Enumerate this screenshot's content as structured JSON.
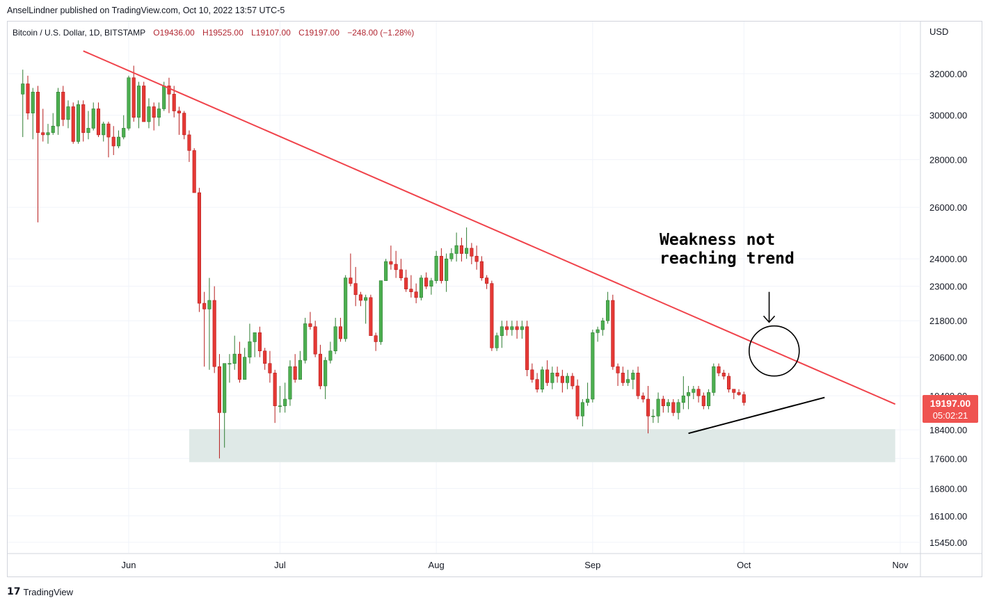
{
  "header": {
    "published_by": "AnselLindner published on TradingView.com, Oct 10, 2022 13:57 UTC-5"
  },
  "footer": {
    "logo_text": "TradingView",
    "logo_icon": "tradingview-logo-icon"
  },
  "colors": {
    "up": "#26a69a",
    "up_fill": "#4caf50",
    "down": "#ef5350",
    "down_fill": "#e53935",
    "trendline": "#f0434b",
    "support_zone": "#dfe9e7",
    "price_label_bg": "#ef5350"
  },
  "chart_data": {
    "type": "candlestick",
    "symbol_line": {
      "name": "Bitcoin / U.S. Dollar, 1D, BITSTAMP",
      "open": "O19436.00",
      "high": "H19525.00",
      "low": "L19107.00",
      "close": "C19197.00",
      "change": "−248.00 (−1.28%)"
    },
    "y_axis": {
      "unit_label": "USD",
      "scale": "log",
      "ticks": [
        32000,
        30000,
        28000,
        26000,
        24000,
        23000,
        21800,
        20600,
        19400,
        18400,
        17600,
        16800,
        16100,
        15450
      ],
      "tick_labels": [
        "32000.00",
        "30000.00",
        "28000.00",
        "26000.00",
        "24000.00",
        "23000.00",
        "21800.00",
        "20600.00",
        "19400.00",
        "18400.00",
        "17600.00",
        "16800.00",
        "16100.00",
        "15450.00"
      ],
      "range": [
        15200,
        34700
      ]
    },
    "x_axis": {
      "range": [
        "2022-05-08",
        "2022-11-05"
      ],
      "ticks": [
        {
          "date": "2022-06-01",
          "label": "Jun"
        },
        {
          "date": "2022-07-01",
          "label": "Jul"
        },
        {
          "date": "2022-08-01",
          "label": "Aug"
        },
        {
          "date": "2022-09-01",
          "label": "Sep"
        },
        {
          "date": "2022-10-01",
          "label": "Oct"
        },
        {
          "date": "2022-11-01",
          "label": "Nov"
        }
      ]
    },
    "start_date": "2022-05-11",
    "candles": [
      {
        "o": 31000,
        "h": 32200,
        "l": 29000,
        "c": 31500
      },
      {
        "o": 31500,
        "h": 31900,
        "l": 29800,
        "c": 30100
      },
      {
        "o": 30100,
        "h": 31300,
        "l": 28900,
        "c": 31100
      },
      {
        "o": 31100,
        "h": 31400,
        "l": 25400,
        "c": 29200
      },
      {
        "o": 29200,
        "h": 30300,
        "l": 28800,
        "c": 29100
      },
      {
        "o": 29100,
        "h": 29600,
        "l": 28700,
        "c": 29200
      },
      {
        "o": 29200,
        "h": 30100,
        "l": 29100,
        "c": 29500
      },
      {
        "o": 29500,
        "h": 31300,
        "l": 29100,
        "c": 31100
      },
      {
        "o": 31100,
        "h": 31400,
        "l": 29500,
        "c": 29800
      },
      {
        "o": 29800,
        "h": 30700,
        "l": 29400,
        "c": 30400
      },
      {
        "o": 30400,
        "h": 30600,
        "l": 28700,
        "c": 28800
      },
      {
        "o": 28800,
        "h": 30700,
        "l": 28700,
        "c": 30500
      },
      {
        "o": 30500,
        "h": 30700,
        "l": 28800,
        "c": 29200
      },
      {
        "o": 29200,
        "h": 30200,
        "l": 28900,
        "c": 29400
      },
      {
        "o": 29400,
        "h": 30600,
        "l": 29300,
        "c": 30300
      },
      {
        "o": 30300,
        "h": 30600,
        "l": 29000,
        "c": 29100
      },
      {
        "o": 29100,
        "h": 29700,
        "l": 28800,
        "c": 29600
      },
      {
        "o": 29600,
        "h": 29700,
        "l": 28100,
        "c": 29000
      },
      {
        "o": 29000,
        "h": 29500,
        "l": 28200,
        "c": 28600
      },
      {
        "o": 28600,
        "h": 29300,
        "l": 28500,
        "c": 29000
      },
      {
        "o": 29000,
        "h": 30000,
        "l": 28900,
        "c": 29400
      },
      {
        "o": 29400,
        "h": 31900,
        "l": 29300,
        "c": 31800
      },
      {
        "o": 31800,
        "h": 32400,
        "l": 29700,
        "c": 29900
      },
      {
        "o": 29900,
        "h": 31600,
        "l": 29400,
        "c": 31400
      },
      {
        "o": 31400,
        "h": 31600,
        "l": 29700,
        "c": 29700
      },
      {
        "o": 29700,
        "h": 30800,
        "l": 29400,
        "c": 30400
      },
      {
        "o": 30400,
        "h": 30600,
        "l": 29300,
        "c": 29900
      },
      {
        "o": 29900,
        "h": 30600,
        "l": 29500,
        "c": 30300
      },
      {
        "o": 30300,
        "h": 31600,
        "l": 30200,
        "c": 31400
      },
      {
        "o": 31400,
        "h": 31800,
        "l": 30100,
        "c": 31000
      },
      {
        "o": 31000,
        "h": 31400,
        "l": 29900,
        "c": 30200
      },
      {
        "o": 30200,
        "h": 30400,
        "l": 29100,
        "c": 30100
      },
      {
        "o": 30100,
        "h": 30200,
        "l": 28900,
        "c": 29100
      },
      {
        "o": 29100,
        "h": 29300,
        "l": 27900,
        "c": 28400
      },
      {
        "o": 28400,
        "h": 28500,
        "l": 26600,
        "c": 26600
      },
      {
        "o": 26600,
        "h": 26800,
        "l": 22100,
        "c": 22400
      },
      {
        "o": 22400,
        "h": 22800,
        "l": 20300,
        "c": 22200
      },
      {
        "o": 22200,
        "h": 23300,
        "l": 20200,
        "c": 22500
      },
      {
        "o": 22500,
        "h": 23000,
        "l": 20100,
        "c": 20300
      },
      {
        "o": 20300,
        "h": 20700,
        "l": 17600,
        "c": 18900
      },
      {
        "o": 18900,
        "h": 20300,
        "l": 17900,
        "c": 20400
      },
      {
        "o": 20400,
        "h": 20700,
        "l": 19800,
        "c": 20400
      },
      {
        "o": 20400,
        "h": 21300,
        "l": 20200,
        "c": 20700
      },
      {
        "o": 20700,
        "h": 21100,
        "l": 19800,
        "c": 19900
      },
      {
        "o": 19900,
        "h": 20900,
        "l": 19900,
        "c": 20600
      },
      {
        "o": 20600,
        "h": 21700,
        "l": 20400,
        "c": 21100
      },
      {
        "o": 21100,
        "h": 21400,
        "l": 20600,
        "c": 21400
      },
      {
        "o": 21400,
        "h": 21600,
        "l": 20600,
        "c": 20800
      },
      {
        "o": 20800,
        "h": 20900,
        "l": 20200,
        "c": 20400
      },
      {
        "o": 20400,
        "h": 20800,
        "l": 19800,
        "c": 20100
      },
      {
        "o": 20100,
        "h": 20200,
        "l": 18600,
        "c": 19100
      },
      {
        "o": 19100,
        "h": 19700,
        "l": 18900,
        "c": 19100
      },
      {
        "o": 19100,
        "h": 19800,
        "l": 18900,
        "c": 19300
      },
      {
        "o": 19300,
        "h": 20500,
        "l": 19100,
        "c": 20300
      },
      {
        "o": 20300,
        "h": 20700,
        "l": 19800,
        "c": 19900
      },
      {
        "o": 19900,
        "h": 20800,
        "l": 19900,
        "c": 20500
      },
      {
        "o": 20500,
        "h": 21900,
        "l": 20400,
        "c": 21700
      },
      {
        "o": 21700,
        "h": 22100,
        "l": 21500,
        "c": 21600
      },
      {
        "o": 21600,
        "h": 21800,
        "l": 20600,
        "c": 20700
      },
      {
        "o": 20700,
        "h": 21000,
        "l": 19600,
        "c": 19700
      },
      {
        "o": 19700,
        "h": 20600,
        "l": 19300,
        "c": 20500
      },
      {
        "o": 20500,
        "h": 21100,
        "l": 20400,
        "c": 20800
      },
      {
        "o": 20800,
        "h": 21900,
        "l": 20700,
        "c": 21600
      },
      {
        "o": 21600,
        "h": 21900,
        "l": 21100,
        "c": 21200
      },
      {
        "o": 21200,
        "h": 23400,
        "l": 21100,
        "c": 23300
      },
      {
        "o": 23300,
        "h": 24200,
        "l": 23000,
        "c": 23100
      },
      {
        "o": 23100,
        "h": 23700,
        "l": 22300,
        "c": 22700
      },
      {
        "o": 22700,
        "h": 22800,
        "l": 22300,
        "c": 22500
      },
      {
        "o": 22500,
        "h": 22700,
        "l": 21700,
        "c": 22600
      },
      {
        "o": 22600,
        "h": 22700,
        "l": 21300,
        "c": 21300
      },
      {
        "o": 21300,
        "h": 21400,
        "l": 20800,
        "c": 21100
      },
      {
        "o": 21100,
        "h": 23200,
        "l": 21000,
        "c": 23200
      },
      {
        "o": 23200,
        "h": 24000,
        "l": 23200,
        "c": 23900
      },
      {
        "o": 23900,
        "h": 24500,
        "l": 23600,
        "c": 23800
      },
      {
        "o": 23800,
        "h": 24300,
        "l": 23300,
        "c": 23600
      },
      {
        "o": 23600,
        "h": 24000,
        "l": 23200,
        "c": 23300
      },
      {
        "o": 23300,
        "h": 23600,
        "l": 22800,
        "c": 22900
      },
      {
        "o": 22900,
        "h": 23400,
        "l": 22600,
        "c": 22800
      },
      {
        "o": 22800,
        "h": 23100,
        "l": 22400,
        "c": 22600
      },
      {
        "o": 22600,
        "h": 23400,
        "l": 22500,
        "c": 23300
      },
      {
        "o": 23300,
        "h": 23500,
        "l": 22900,
        "c": 23000
      },
      {
        "o": 23000,
        "h": 23300,
        "l": 22700,
        "c": 23200
      },
      {
        "o": 23200,
        "h": 24300,
        "l": 23100,
        "c": 24100
      },
      {
        "o": 24100,
        "h": 24400,
        "l": 23100,
        "c": 23200
      },
      {
        "o": 23200,
        "h": 24200,
        "l": 22800,
        "c": 24000
      },
      {
        "o": 24000,
        "h": 24400,
        "l": 23900,
        "c": 24200
      },
      {
        "o": 24200,
        "h": 25000,
        "l": 23900,
        "c": 24500
      },
      {
        "o": 24500,
        "h": 24800,
        "l": 23900,
        "c": 24200
      },
      {
        "o": 24200,
        "h": 25200,
        "l": 24000,
        "c": 24400
      },
      {
        "o": 24400,
        "h": 24600,
        "l": 23800,
        "c": 24100
      },
      {
        "o": 24100,
        "h": 24500,
        "l": 23600,
        "c": 23900
      },
      {
        "o": 23900,
        "h": 24100,
        "l": 23200,
        "c": 23300
      },
      {
        "o": 23300,
        "h": 23400,
        "l": 22900,
        "c": 23100
      },
      {
        "o": 23100,
        "h": 23200,
        "l": 20800,
        "c": 20900
      },
      {
        "o": 20900,
        "h": 21400,
        "l": 20800,
        "c": 21300
      },
      {
        "o": 21300,
        "h": 21800,
        "l": 20900,
        "c": 21600
      },
      {
        "o": 21600,
        "h": 21800,
        "l": 21300,
        "c": 21500
      },
      {
        "o": 21500,
        "h": 21800,
        "l": 21300,
        "c": 21600
      },
      {
        "o": 21600,
        "h": 21800,
        "l": 21200,
        "c": 21500
      },
      {
        "o": 21500,
        "h": 21800,
        "l": 21200,
        "c": 21600
      },
      {
        "o": 21600,
        "h": 21800,
        "l": 20000,
        "c": 20200
      },
      {
        "o": 20200,
        "h": 20400,
        "l": 19800,
        "c": 19900
      },
      {
        "o": 19900,
        "h": 20100,
        "l": 19500,
        "c": 19600
      },
      {
        "o": 19600,
        "h": 20300,
        "l": 19500,
        "c": 20200
      },
      {
        "o": 20200,
        "h": 20500,
        "l": 19700,
        "c": 19800
      },
      {
        "o": 19800,
        "h": 20300,
        "l": 19600,
        "c": 20100
      },
      {
        "o": 20100,
        "h": 20300,
        "l": 19800,
        "c": 20000
      },
      {
        "o": 20000,
        "h": 20200,
        "l": 19500,
        "c": 19800
      },
      {
        "o": 19800,
        "h": 20100,
        "l": 19600,
        "c": 20000
      },
      {
        "o": 20000,
        "h": 20100,
        "l": 19600,
        "c": 19700
      },
      {
        "o": 19700,
        "h": 19900,
        "l": 18700,
        "c": 18800
      },
      {
        "o": 18800,
        "h": 19300,
        "l": 18500,
        "c": 19200
      },
      {
        "o": 19200,
        "h": 19800,
        "l": 19100,
        "c": 19300
      },
      {
        "o": 19300,
        "h": 21500,
        "l": 19200,
        "c": 21400
      },
      {
        "o": 21400,
        "h": 21600,
        "l": 21100,
        "c": 21500
      },
      {
        "o": 21500,
        "h": 21900,
        "l": 21300,
        "c": 21800
      },
      {
        "o": 21800,
        "h": 22800,
        "l": 21700,
        "c": 22500
      },
      {
        "o": 22500,
        "h": 22700,
        "l": 20200,
        "c": 20300
      },
      {
        "o": 20300,
        "h": 20400,
        "l": 19700,
        "c": 20100
      },
      {
        "o": 20100,
        "h": 20300,
        "l": 19700,
        "c": 19800
      },
      {
        "o": 19800,
        "h": 20200,
        "l": 19700,
        "c": 19900
      },
      {
        "o": 19900,
        "h": 20200,
        "l": 19600,
        "c": 20100
      },
      {
        "o": 20100,
        "h": 20300,
        "l": 19300,
        "c": 19400
      },
      {
        "o": 19400,
        "h": 19500,
        "l": 19200,
        "c": 19300
      },
      {
        "o": 19300,
        "h": 19700,
        "l": 18300,
        "c": 18800
      },
      {
        "o": 18800,
        "h": 19000,
        "l": 18600,
        "c": 18800
      },
      {
        "o": 18800,
        "h": 19500,
        "l": 18600,
        "c": 19300
      },
      {
        "o": 19300,
        "h": 19400,
        "l": 18900,
        "c": 19100
      },
      {
        "o": 19100,
        "h": 19300,
        "l": 18900,
        "c": 19200
      },
      {
        "o": 19200,
        "h": 19300,
        "l": 18800,
        "c": 18900
      },
      {
        "o": 18900,
        "h": 19300,
        "l": 18700,
        "c": 19200
      },
      {
        "o": 19200,
        "h": 20000,
        "l": 19000,
        "c": 19400
      },
      {
        "o": 19400,
        "h": 19700,
        "l": 19000,
        "c": 19500
      },
      {
        "o": 19500,
        "h": 19700,
        "l": 19300,
        "c": 19600
      },
      {
        "o": 19600,
        "h": 19700,
        "l": 19200,
        "c": 19400
      },
      {
        "o": 19400,
        "h": 19500,
        "l": 19000,
        "c": 19100
      },
      {
        "o": 19100,
        "h": 19600,
        "l": 19000,
        "c": 19500
      },
      {
        "o": 19500,
        "h": 20400,
        "l": 19400,
        "c": 20300
      },
      {
        "o": 20300,
        "h": 20400,
        "l": 20000,
        "c": 20100
      },
      {
        "o": 20100,
        "h": 20200,
        "l": 19900,
        "c": 20000
      },
      {
        "o": 20000,
        "h": 20100,
        "l": 19500,
        "c": 19600
      },
      {
        "o": 19600,
        "h": 19600,
        "l": 19300,
        "c": 19500
      },
      {
        "o": 19500,
        "h": 19600,
        "l": 19400,
        "c": 19436
      },
      {
        "o": 19436,
        "h": 19525,
        "l": 19107,
        "c": 19197
      }
    ],
    "last_price_label": "19197.00",
    "countdown_label": "05:02:21",
    "annotations": {
      "text_line1": "Weakness not",
      "text_line2": "reaching trend",
      "resistance_line": {
        "start": {
          "date": "2022-05-23",
          "price": 33150
        },
        "end": {
          "date": "2022-10-31",
          "price": 19150
        }
      },
      "support_line": {
        "start": {
          "date": "2022-09-20",
          "price": 18300
        },
        "end": {
          "date": "2022-10-17",
          "price": 19350
        }
      },
      "support_zone": {
        "from_date": "2022-06-13",
        "to_date": "2022-10-31",
        "low": 17500,
        "high": 18420
      },
      "circle_center": {
        "date": "2022-10-07",
        "price": 20800
      },
      "arrow": {
        "date": "2022-10-06",
        "from_price": 22800,
        "to_price": 21750
      }
    }
  }
}
